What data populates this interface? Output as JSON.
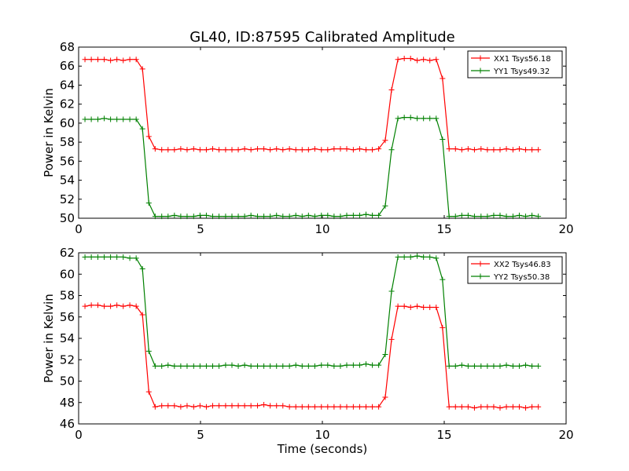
{
  "title": "GL40, ID:87595 Calibrated Amplitude",
  "chart_data": [
    {
      "type": "line",
      "ylabel": "Power in Kelvin",
      "xlabel": "",
      "xlim": [
        0,
        20
      ],
      "ylim": [
        50,
        68
      ],
      "xticks": [
        0,
        5,
        10,
        15,
        20
      ],
      "yticks": [
        50,
        52,
        54,
        56,
        58,
        60,
        62,
        64,
        66,
        68
      ],
      "legend": "top-right",
      "grid": false,
      "x": [
        0.26,
        0.52,
        0.79,
        1.05,
        1.31,
        1.57,
        1.83,
        2.1,
        2.36,
        2.62,
        2.88,
        3.14,
        3.41,
        3.67,
        3.93,
        4.19,
        4.45,
        4.72,
        4.98,
        5.24,
        5.5,
        5.76,
        6.03,
        6.29,
        6.55,
        6.81,
        7.07,
        7.34,
        7.6,
        7.86,
        8.12,
        8.38,
        8.65,
        8.91,
        9.17,
        9.43,
        9.69,
        9.96,
        10.22,
        10.48,
        10.74,
        11.0,
        11.27,
        11.53,
        11.79,
        12.05,
        12.31,
        12.58,
        12.84,
        13.1,
        13.36,
        13.62,
        13.89,
        14.15,
        14.41,
        14.67,
        14.93,
        15.2,
        15.46,
        15.72,
        15.98,
        16.24,
        16.51,
        16.77,
        17.03,
        17.29,
        17.55,
        17.82,
        18.08,
        18.34,
        18.6,
        18.86
      ],
      "series": [
        {
          "name": "XX1 Tsys56.18",
          "color": "#ff0000",
          "values": [
            66.7,
            66.7,
            66.7,
            66.7,
            66.6,
            66.7,
            66.6,
            66.7,
            66.7,
            65.7,
            58.6,
            57.3,
            57.2,
            57.2,
            57.2,
            57.3,
            57.2,
            57.3,
            57.2,
            57.2,
            57.3,
            57.2,
            57.2,
            57.2,
            57.2,
            57.3,
            57.2,
            57.3,
            57.3,
            57.2,
            57.3,
            57.2,
            57.3,
            57.2,
            57.2,
            57.2,
            57.3,
            57.2,
            57.2,
            57.3,
            57.3,
            57.3,
            57.2,
            57.3,
            57.2,
            57.2,
            57.3,
            58.2,
            63.5,
            66.7,
            66.8,
            66.8,
            66.6,
            66.7,
            66.6,
            66.7,
            64.7,
            57.3,
            57.3,
            57.2,
            57.3,
            57.2,
            57.3,
            57.2,
            57.2,
            57.2,
            57.3,
            57.2,
            57.3,
            57.2,
            57.2,
            57.2
          ]
        },
        {
          "name": "YY1 Tsys49.32",
          "color": "#008000",
          "values": [
            60.4,
            60.4,
            60.4,
            60.5,
            60.4,
            60.4,
            60.4,
            60.4,
            60.4,
            59.4,
            51.6,
            50.2,
            50.2,
            50.2,
            50.3,
            50.2,
            50.2,
            50.2,
            50.3,
            50.3,
            50.2,
            50.2,
            50.2,
            50.2,
            50.2,
            50.2,
            50.3,
            50.2,
            50.2,
            50.2,
            50.3,
            50.2,
            50.2,
            50.3,
            50.2,
            50.3,
            50.2,
            50.3,
            50.3,
            50.2,
            50.2,
            50.3,
            50.3,
            50.3,
            50.4,
            50.3,
            50.3,
            51.3,
            57.2,
            60.5,
            60.6,
            60.6,
            60.5,
            60.5,
            60.5,
            60.5,
            58.3,
            50.2,
            50.2,
            50.3,
            50.3,
            50.2,
            50.2,
            50.2,
            50.3,
            50.3,
            50.2,
            50.2,
            50.3,
            50.2,
            50.3,
            50.2
          ]
        }
      ]
    },
    {
      "type": "line",
      "ylabel": "Power in Kelvin",
      "xlabel": "Time (seconds)",
      "xlim": [
        0,
        20
      ],
      "ylim": [
        46,
        62
      ],
      "xticks": [
        0,
        5,
        10,
        15,
        20
      ],
      "yticks": [
        46,
        48,
        50,
        52,
        54,
        56,
        58,
        60,
        62
      ],
      "legend": "top-right",
      "grid": false,
      "x": [
        0.26,
        0.52,
        0.79,
        1.05,
        1.31,
        1.57,
        1.83,
        2.1,
        2.36,
        2.62,
        2.88,
        3.14,
        3.41,
        3.67,
        3.93,
        4.19,
        4.45,
        4.72,
        4.98,
        5.24,
        5.5,
        5.76,
        6.03,
        6.29,
        6.55,
        6.81,
        7.07,
        7.34,
        7.6,
        7.86,
        8.12,
        8.38,
        8.65,
        8.91,
        9.17,
        9.43,
        9.69,
        9.96,
        10.22,
        10.48,
        10.74,
        11.0,
        11.27,
        11.53,
        11.79,
        12.05,
        12.31,
        12.58,
        12.84,
        13.1,
        13.36,
        13.62,
        13.89,
        14.15,
        14.41,
        14.67,
        14.93,
        15.2,
        15.46,
        15.72,
        15.98,
        16.24,
        16.51,
        16.77,
        17.03,
        17.29,
        17.55,
        17.82,
        18.08,
        18.34,
        18.6,
        18.86
      ],
      "series": [
        {
          "name": "XX2 Tsys46.83",
          "color": "#ff0000",
          "values": [
            57.0,
            57.1,
            57.1,
            57.0,
            57.0,
            57.1,
            57.0,
            57.1,
            57.0,
            56.2,
            49.0,
            47.6,
            47.7,
            47.7,
            47.7,
            47.6,
            47.7,
            47.6,
            47.7,
            47.6,
            47.7,
            47.7,
            47.7,
            47.7,
            47.7,
            47.7,
            47.7,
            47.7,
            47.8,
            47.7,
            47.7,
            47.7,
            47.6,
            47.6,
            47.6,
            47.6,
            47.6,
            47.6,
            47.6,
            47.6,
            47.6,
            47.6,
            47.6,
            47.6,
            47.6,
            47.6,
            47.6,
            48.5,
            53.9,
            57.0,
            57.0,
            56.9,
            57.0,
            56.9,
            56.9,
            56.9,
            55.0,
            47.6,
            47.6,
            47.6,
            47.6,
            47.5,
            47.6,
            47.6,
            47.6,
            47.5,
            47.6,
            47.6,
            47.6,
            47.5,
            47.6,
            47.6
          ]
        },
        {
          "name": "YY2 Tsys50.38",
          "color": "#008000",
          "values": [
            61.6,
            61.6,
            61.6,
            61.6,
            61.6,
            61.6,
            61.6,
            61.5,
            61.5,
            60.5,
            52.8,
            51.4,
            51.4,
            51.5,
            51.4,
            51.4,
            51.4,
            51.4,
            51.4,
            51.4,
            51.4,
            51.4,
            51.5,
            51.5,
            51.4,
            51.5,
            51.4,
            51.4,
            51.4,
            51.4,
            51.4,
            51.4,
            51.4,
            51.5,
            51.4,
            51.4,
            51.4,
            51.5,
            51.5,
            51.4,
            51.4,
            51.5,
            51.5,
            51.5,
            51.6,
            51.5,
            51.5,
            52.5,
            58.4,
            61.6,
            61.6,
            61.6,
            61.7,
            61.6,
            61.6,
            61.5,
            59.5,
            51.4,
            51.4,
            51.5,
            51.4,
            51.4,
            51.4,
            51.4,
            51.4,
            51.4,
            51.5,
            51.4,
            51.4,
            51.5,
            51.4,
            51.4
          ]
        }
      ]
    }
  ]
}
